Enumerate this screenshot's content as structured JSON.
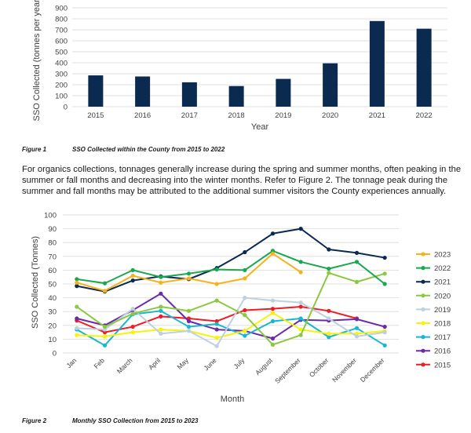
{
  "figure1": {
    "caption_number": "Figure 1",
    "caption_text": "SSO Collected within the County from 2015 to 2022"
  },
  "paragraph": "For organics collections, tonnages generally increase during the spring and summer months, often peaking in the summer or fall months and decreasing into the winter months. Refer to Figure 2. The tonnage peak during the summer and fall months may be attributed to the additional summer visitors the County experiences annually.",
  "figure2": {
    "caption_number": "Figure 2",
    "caption_text": "Monthly SSO Collection from 2015 to 2023"
  },
  "chart_data": [
    {
      "type": "bar",
      "categories": [
        "2015",
        "2016",
        "2017",
        "2018",
        "2019",
        "2020",
        "2021",
        "2022"
      ],
      "values": [
        285,
        275,
        222,
        188,
        253,
        395,
        780,
        710
      ],
      "xlabel": "Year",
      "ylabel": "SSO Collected (tonnes per year)",
      "ylim": [
        0,
        900
      ],
      "yticks": [
        0,
        100,
        200,
        300,
        400,
        500,
        600,
        700,
        800,
        900
      ],
      "grid": true,
      "bar_color": "#0b2a4f"
    },
    {
      "type": "line",
      "categories": [
        "Jan",
        "Feb",
        "March",
        "April",
        "May",
        "June",
        "July",
        "August",
        "September",
        "October",
        "November",
        "December"
      ],
      "xlabel": "Month",
      "ylabel": "SSO Collected (Tonnes)",
      "ylim": [
        0,
        100
      ],
      "yticks": [
        0,
        10,
        20,
        30,
        40,
        50,
        60,
        70,
        80,
        90,
        100
      ],
      "grid": true,
      "legend_position": "right",
      "series": [
        {
          "name": "2023",
          "color": "#f5b21b",
          "values": [
            51,
            45,
            56,
            51,
            54,
            50,
            54,
            72,
            58.5,
            null,
            null,
            null
          ]
        },
        {
          "name": "2022",
          "color": "#1aa84f",
          "values": [
            53.5,
            50.5,
            60,
            55,
            57.5,
            60.5,
            60,
            74,
            66,
            61,
            66,
            50
          ]
        },
        {
          "name": "2021",
          "color": "#0b2a4f",
          "values": [
            48.5,
            44.5,
            52.5,
            55.5,
            53.5,
            61.5,
            73,
            86.5,
            90,
            75,
            72.5,
            69
          ]
        },
        {
          "name": "2020",
          "color": "#8ac93f",
          "values": [
            33.5,
            19,
            28.5,
            33.5,
            30.5,
            38,
            27.5,
            6,
            13,
            58,
            51.5,
            57.5
          ]
        },
        {
          "name": "2019",
          "color": "#bdd0e2",
          "values": [
            18,
            17,
            32,
            14,
            16,
            5,
            40,
            38,
            36.5,
            25,
            12,
            15
          ]
        },
        {
          "name": "2018",
          "color": "#f6f20c",
          "values": [
            13,
            12,
            15,
            17,
            16,
            11,
            16,
            29,
            17,
            14,
            14,
            16
          ]
        },
        {
          "name": "2017",
          "color": "#1ab6cf",
          "values": [
            17,
            5.5,
            28,
            30.5,
            19,
            21,
            12.5,
            23,
            25,
            11.5,
            18,
            5.5
          ]
        },
        {
          "name": "2016",
          "color": "#6b2aa7",
          "values": [
            25,
            20,
            31,
            43,
            23,
            17,
            16,
            10.5,
            24,
            23.5,
            24.5,
            19
          ]
        },
        {
          "name": "2015",
          "color": "#ee1c24",
          "values": [
            23.5,
            15,
            19,
            26.5,
            25,
            23,
            31,
            32,
            33.5,
            30.5,
            25,
            null
          ]
        }
      ]
    }
  ]
}
